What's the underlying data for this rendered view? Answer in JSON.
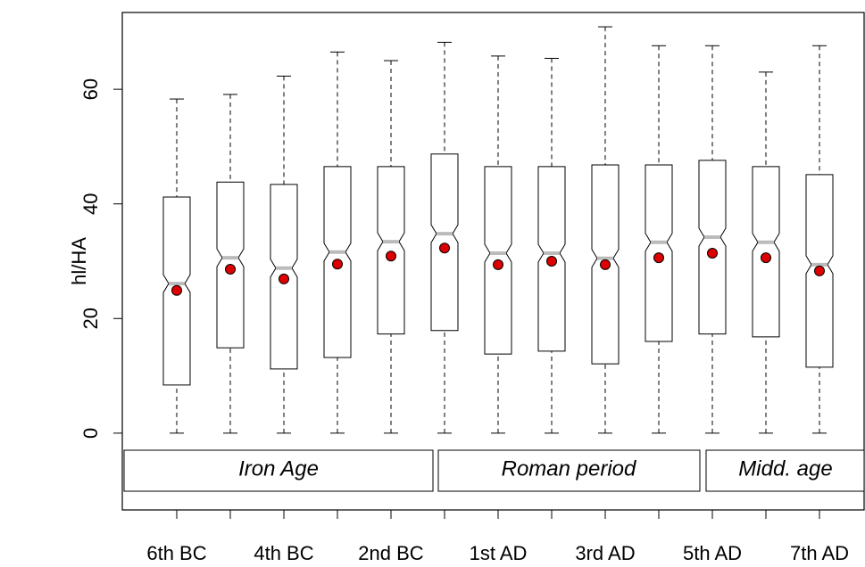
{
  "chart_data": {
    "type": "boxplot",
    "y_label": "hl/HA",
    "categories": [
      "6th BC",
      null,
      "4th BC",
      null,
      "2nd BC",
      null,
      "1st AD",
      null,
      "3rd AD",
      null,
      "5th AD",
      null,
      "7th AD"
    ],
    "min": [
      0,
      0,
      0,
      0,
      0,
      0,
      0,
      0,
      0,
      0,
      0,
      0,
      0
    ],
    "q1": [
      8.4,
      14.9,
      11.2,
      13.2,
      17.3,
      17.9,
      13.8,
      14.3,
      12.1,
      16.0,
      17.3,
      16.8,
      11.5
    ],
    "median": [
      26.1,
      30.6,
      28.8,
      31.6,
      33.4,
      34.8,
      31.4,
      31.4,
      30.5,
      33.3,
      34.2,
      33.3,
      29.4
    ],
    "q3": [
      41.2,
      43.8,
      43.4,
      46.5,
      46.5,
      48.7,
      46.5,
      46.5,
      46.8,
      46.8,
      47.6,
      46.5,
      45.1
    ],
    "max": [
      58.3,
      59.1,
      62.3,
      66.5,
      65.0,
      68.2,
      65.8,
      65.4,
      70.9,
      67.6,
      67.6,
      63.0,
      67.6
    ],
    "mean": [
      24.9,
      28.6,
      26.9,
      29.5,
      30.9,
      32.3,
      29.4,
      30.0,
      29.4,
      30.6,
      31.4,
      30.6,
      28.3
    ],
    "mean_color": "#dd0000",
    "median_color": "#bbbbbb",
    "ylim": [
      -13.4,
      73.4
    ],
    "yticks": [
      0,
      20,
      40,
      60
    ],
    "periods": [
      "Iron Age",
      "Roman period",
      "Midd. age"
    ]
  }
}
